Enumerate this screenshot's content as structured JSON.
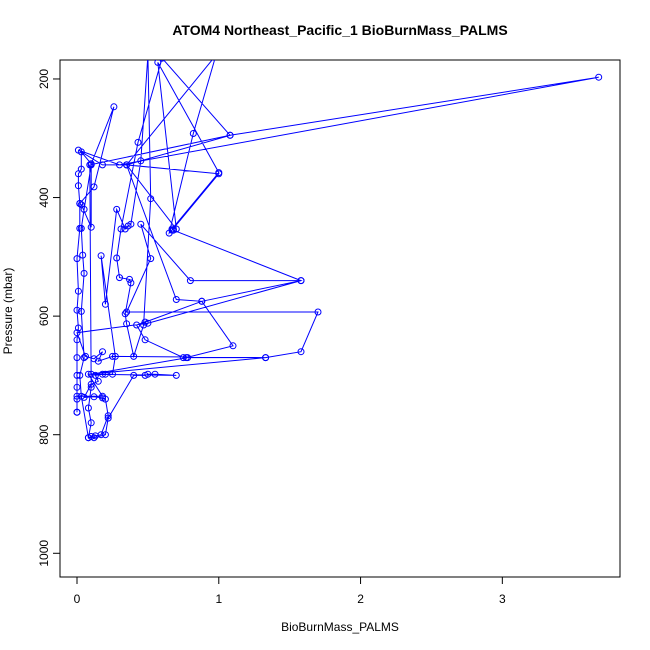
{
  "chart_data": {
    "type": "line",
    "title": "ATOM4 Northeast_Pacific_1 BioBurnMass_PALMS",
    "xlabel": "BioBurnMass_PALMS",
    "ylabel": "Pressure (mbar)",
    "xlim": [
      -0.12,
      3.83
    ],
    "ylim": [
      1040,
      168
    ],
    "y_reversed": true,
    "xticks": [
      0,
      1,
      2,
      3
    ],
    "yticks": [
      200,
      400,
      600,
      800,
      1000
    ],
    "grid": false,
    "legend": "none",
    "color": "#0000ff",
    "series": [
      {
        "points": [
          [
            0.0,
            762
          ],
          [
            0.0,
            762
          ],
          [
            0.0,
            740
          ],
          [
            0.0,
            720
          ],
          [
            0.0,
            700
          ],
          [
            0.0,
            670
          ],
          [
            0.0,
            640
          ],
          [
            0.01,
            620
          ],
          [
            0.0,
            590
          ],
          [
            0.01,
            558
          ],
          [
            0.0,
            503
          ],
          [
            0.02,
            452
          ],
          [
            0.02,
            410
          ],
          [
            0.01,
            380
          ],
          [
            0.01,
            360
          ],
          [
            0.03,
            352
          ],
          [
            0.03,
            323
          ],
          [
            0.1,
            343
          ],
          [
            0.26,
            247
          ],
          [
            0.12,
            382
          ],
          [
            0.02,
            410
          ],
          [
            0.03,
            412
          ],
          [
            0.1,
            450
          ],
          [
            0.1,
            345
          ],
          [
            0.05,
            420
          ],
          [
            0.03,
            452
          ],
          [
            0.04,
            497
          ],
          [
            0.05,
            528
          ],
          [
            0.03,
            592
          ],
          [
            0.05,
            670
          ],
          [
            0.02,
            700
          ],
          [
            0.03,
            735
          ],
          [
            0.08,
            805
          ],
          [
            0.1,
            803
          ],
          [
            0.13,
            802
          ],
          [
            0.17,
            800
          ],
          [
            0.22,
            768
          ],
          [
            0.2,
            740
          ],
          [
            0.18,
            738
          ],
          [
            0.12,
            736
          ],
          [
            0.05,
            737
          ],
          [
            0.1,
            715
          ],
          [
            0.15,
            710
          ],
          [
            0.13,
            700
          ],
          [
            0.18,
            698
          ],
          [
            0.2,
            698
          ],
          [
            0.25,
            698
          ],
          [
            0.27,
            668
          ],
          [
            0.17,
            498
          ],
          [
            0.2,
            580
          ],
          [
            0.28,
            420
          ],
          [
            0.34,
            453
          ],
          [
            0.36,
            448
          ],
          [
            0.38,
            445
          ],
          [
            0.45,
            338
          ],
          [
            0.5,
            160
          ],
          [
            0.52,
            402
          ],
          [
            0.47,
            615
          ],
          [
            0.4,
            668
          ],
          [
            0.35,
            613
          ],
          [
            0.34,
            596
          ],
          [
            0.38,
            544
          ],
          [
            0.37,
            538
          ],
          [
            0.3,
            535
          ],
          [
            0.28,
            502
          ],
          [
            0.31,
            453
          ],
          [
            0.43,
            307
          ],
          [
            0.6,
            165
          ],
          [
            1.08,
            295
          ],
          [
            0.35,
            345
          ],
          [
            0.7,
            453
          ],
          [
            0.57,
            172
          ],
          [
            1.0,
            358
          ],
          [
            0.67,
            453
          ],
          [
            0.68,
            455
          ],
          [
            1.58,
            540
          ],
          [
            0.88,
            575
          ],
          [
            0.48,
            610
          ],
          [
            0.42,
            615
          ],
          [
            0.48,
            640
          ],
          [
            0.75,
            670
          ],
          [
            0.77,
            670
          ],
          [
            1.1,
            650
          ],
          [
            0.88,
            575
          ],
          [
            0.7,
            572
          ],
          [
            0.35,
            345
          ],
          [
            0.98,
            160
          ],
          [
            0.82,
            292
          ],
          [
            0.65,
            460
          ],
          [
            0.67,
            455
          ],
          [
            1.0,
            360
          ],
          [
            0.35,
            345
          ],
          [
            0.18,
            345
          ],
          [
            0.01,
            320
          ],
          [
            0.3,
            345
          ],
          [
            3.68,
            197
          ],
          [
            1.08,
            295
          ],
          [
            0.09,
            345
          ],
          [
            0.1,
            720
          ],
          [
            0.08,
            755
          ],
          [
            0.1,
            780
          ],
          [
            0.08,
            805
          ],
          [
            0.12,
            805
          ],
          [
            0.2,
            800
          ],
          [
            0.22,
            772
          ],
          [
            0.4,
            700
          ],
          [
            0.48,
            700
          ],
          [
            0.5,
            698
          ],
          [
            0.55,
            698
          ],
          [
            0.7,
            700
          ],
          [
            0.1,
            698
          ],
          [
            0.78,
            670
          ],
          [
            1.33,
            670
          ],
          [
            0.25,
            668
          ],
          [
            0.15,
            676
          ],
          [
            0.18,
            660
          ],
          [
            0.12,
            672
          ],
          [
            0.06,
            668
          ],
          [
            0.0,
            628
          ],
          [
            0.5,
            612
          ],
          [
            1.58,
            540
          ],
          [
            0.8,
            540
          ],
          [
            0.45,
            445
          ],
          [
            0.52,
            503
          ],
          [
            0.35,
            593
          ],
          [
            1.7,
            593
          ],
          [
            1.58,
            660
          ],
          [
            1.33,
            670
          ],
          [
            0.08,
            698
          ],
          [
            0.18,
            735
          ],
          [
            0.0,
            735
          ],
          [
            0.0,
            762
          ]
        ]
      }
    ]
  }
}
